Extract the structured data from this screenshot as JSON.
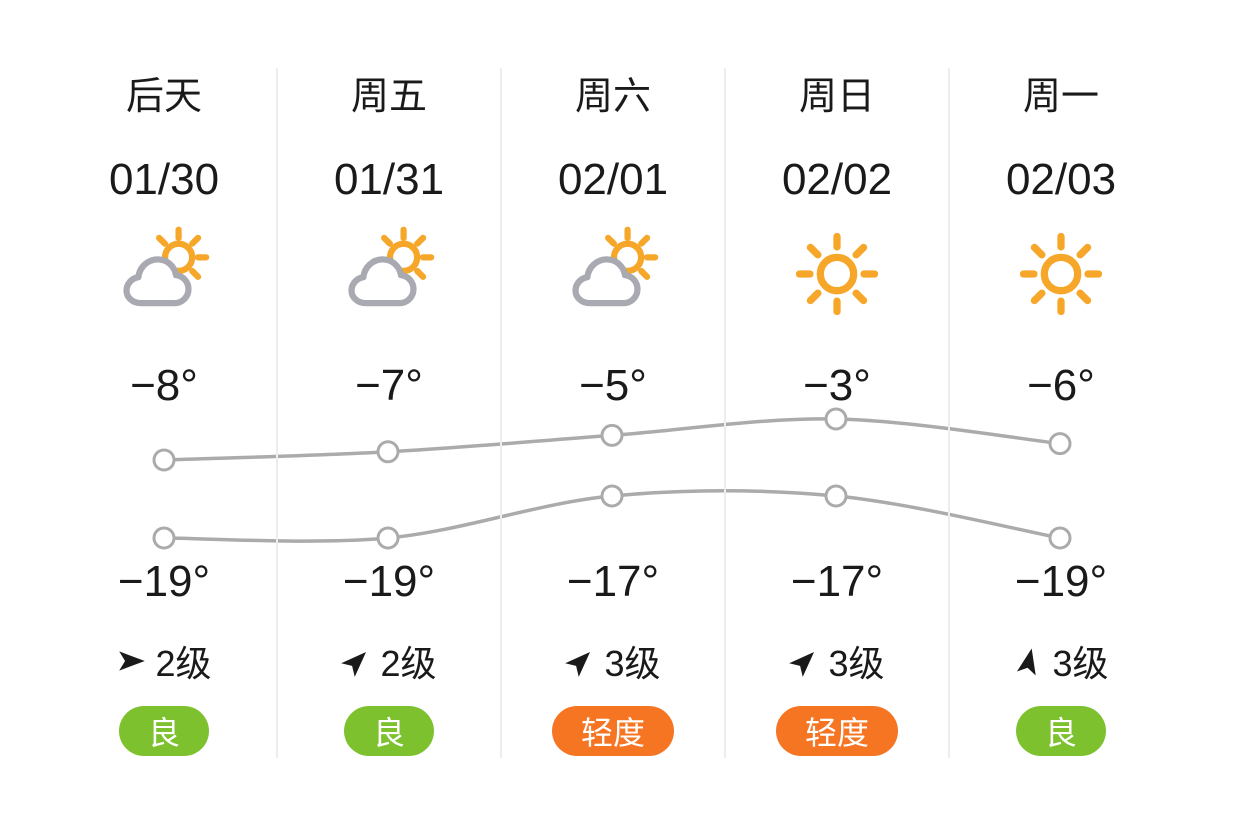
{
  "colors": {
    "sun": "#F6A72A",
    "cloud": "#A9A9B2",
    "line": "#ABABAB",
    "divider": "#EDEDED",
    "text": "#1A1A1A",
    "badge_good": "#7EC12F",
    "badge_light": "#F57522",
    "badge_text": "#FFFFFF"
  },
  "columns": [
    {
      "day": "后天",
      "date": "01/30",
      "icon": "partly-cloudy",
      "icon_name": "partly-cloudy-icon",
      "high": "−8°",
      "low": "−19°",
      "wind": {
        "level": "2级",
        "direction_deg": 90
      },
      "aqi": {
        "label": "良",
        "level": "good"
      }
    },
    {
      "day": "周五",
      "date": "01/31",
      "icon": "partly-cloudy",
      "icon_name": "partly-cloudy-icon",
      "high": "−7°",
      "low": "−19°",
      "wind": {
        "level": "2级",
        "direction_deg": 45
      },
      "aqi": {
        "label": "良",
        "level": "good"
      }
    },
    {
      "day": "周六",
      "date": "02/01",
      "icon": "partly-cloudy",
      "icon_name": "partly-cloudy-icon",
      "high": "−5°",
      "low": "−17°",
      "wind": {
        "level": "3级",
        "direction_deg": 45
      },
      "aqi": {
        "label": "轻度",
        "level": "light"
      }
    },
    {
      "day": "周日",
      "date": "02/02",
      "icon": "sunny",
      "icon_name": "sunny-icon",
      "high": "−3°",
      "low": "−17°",
      "wind": {
        "level": "3级",
        "direction_deg": 45
      },
      "aqi": {
        "label": "轻度",
        "level": "light"
      }
    },
    {
      "day": "周一",
      "date": "02/03",
      "icon": "sunny",
      "icon_name": "sunny-icon",
      "high": "−6°",
      "low": "−19°",
      "wind": {
        "level": "3级",
        "direction_deg": 12
      },
      "aqi": {
        "label": "良",
        "level": "good"
      }
    }
  ],
  "chart_data": {
    "type": "line",
    "categories": [
      "01/30",
      "01/31",
      "02/01",
      "02/02",
      "02/03"
    ],
    "series": [
      {
        "name": "high",
        "values": [
          -8,
          -7,
          -5,
          -3,
          -6
        ]
      },
      {
        "name": "low",
        "values": [
          -19,
          -19,
          -17,
          -17,
          -19
        ]
      }
    ],
    "unit": "°C",
    "grid": false,
    "legend": false,
    "marker": "hollow-circle",
    "line_color": "#ABABAB"
  }
}
